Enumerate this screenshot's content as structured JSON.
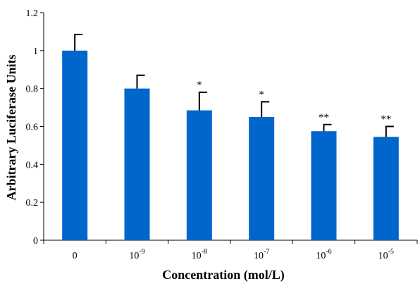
{
  "chart_data": {
    "type": "bar",
    "xlabel": "Concentration (mol/L)",
    "ylabel": "Arbitrary Luciferase Units",
    "ylim": [
      0,
      1.2
    ],
    "yticks": [
      "0",
      "0.2",
      "0.4",
      "0.6",
      "0.8",
      "1",
      "1.2"
    ],
    "grid": false,
    "categories": [
      {
        "base": "0",
        "exp": ""
      },
      {
        "base": "10",
        "exp": "-9"
      },
      {
        "base": "10",
        "exp": "-8"
      },
      {
        "base": "10",
        "exp": "-7"
      },
      {
        "base": "10",
        "exp": "-6"
      },
      {
        "base": "10",
        "exp": "-5"
      }
    ],
    "values": [
      1.0,
      0.8,
      0.685,
      0.65,
      0.575,
      0.545
    ],
    "errors": [
      0.085,
      0.07,
      0.095,
      0.08,
      0.035,
      0.055
    ],
    "significance": [
      "",
      "",
      "*",
      "*",
      "**",
      "**"
    ],
    "bar_color": "#0066cc",
    "axis_color": "#000000"
  }
}
